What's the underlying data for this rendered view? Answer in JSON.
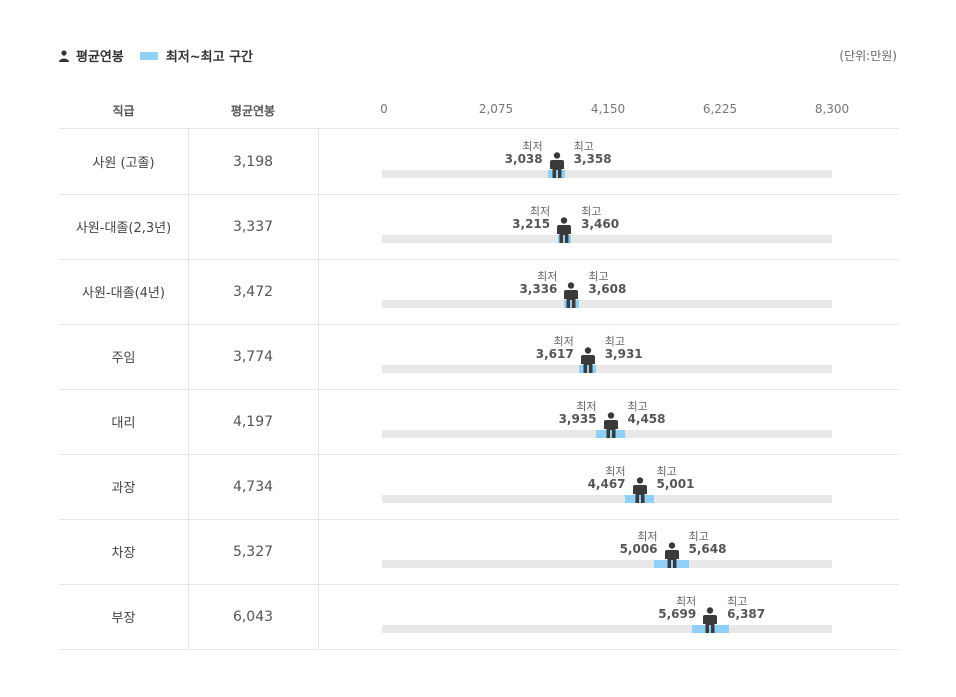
{
  "legend": {
    "avg_label": "평균연봉",
    "range_label": "최저~최고 구간",
    "avg_icon": "person-icon",
    "range_color": "#8fd0f8"
  },
  "unit": "(단위:만원)",
  "headers": {
    "rank": "직급",
    "avg": "평균연봉"
  },
  "labels": {
    "min": "최저",
    "max": "최고"
  },
  "chart_data": {
    "type": "table",
    "axis": {
      "min": 0,
      "max": 8300,
      "ticks": [
        "0",
        "2,075",
        "4,150",
        "6,225",
        "8,300"
      ],
      "tick_values": [
        0,
        2075,
        4150,
        6225,
        8300
      ]
    },
    "rows": [
      {
        "rank": "사원 (고졸)",
        "avg": 3198,
        "avg_text": "3,198",
        "min": 3038,
        "min_text": "3,038",
        "max": 3358,
        "max_text": "3,358"
      },
      {
        "rank": "사원-대졸(2,3년)",
        "avg": 3337,
        "avg_text": "3,337",
        "min": 3215,
        "min_text": "3,215",
        "max": 3460,
        "max_text": "3,460"
      },
      {
        "rank": "사원-대졸(4년)",
        "avg": 3472,
        "avg_text": "3,472",
        "min": 3336,
        "min_text": "3,336",
        "max": 3608,
        "max_text": "3,608"
      },
      {
        "rank": "주임",
        "avg": 3774,
        "avg_text": "3,774",
        "min": 3617,
        "min_text": "3,617",
        "max": 3931,
        "max_text": "3,931"
      },
      {
        "rank": "대리",
        "avg": 4197,
        "avg_text": "4,197",
        "min": 3935,
        "min_text": "3,935",
        "max": 4458,
        "max_text": "4,458"
      },
      {
        "rank": "과장",
        "avg": 4734,
        "avg_text": "4,734",
        "min": 4467,
        "min_text": "4,467",
        "max": 5001,
        "max_text": "5,001"
      },
      {
        "rank": "차장",
        "avg": 5327,
        "avg_text": "5,327",
        "min": 5006,
        "min_text": "5,006",
        "max": 5648,
        "max_text": "5,648"
      },
      {
        "rank": "부장",
        "avg": 6043,
        "avg_text": "6,043",
        "min": 5699,
        "min_text": "5,699",
        "max": 6387,
        "max_text": "6,387"
      }
    ]
  }
}
